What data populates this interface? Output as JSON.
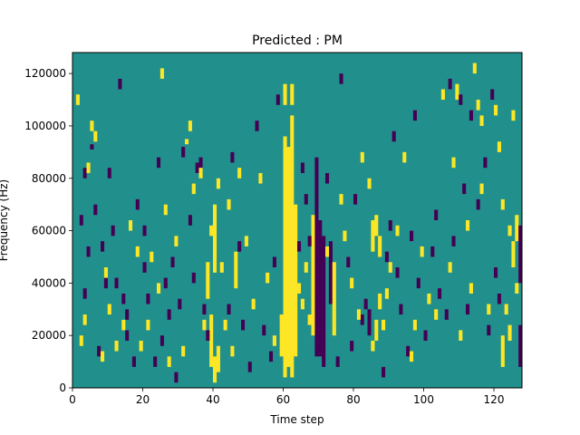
{
  "chart_data": {
    "type": "heatmap",
    "title": "Predicted : PM",
    "xlabel": "Time step",
    "ylabel": "Frequency (Hz)",
    "xlim": [
      0,
      128
    ],
    "ylim": [
      0,
      128000
    ],
    "x_ticks": [
      0,
      20,
      40,
      60,
      80,
      100,
      120
    ],
    "y_ticks": [
      0,
      20000,
      40000,
      60000,
      80000,
      100000,
      120000
    ],
    "grid": false,
    "legend": "none",
    "colormap": "viridis",
    "cell_values": [
      -1,
      0,
      1
    ],
    "colors": {
      "-1": "#440154",
      "0": "#21908d",
      "1": "#fde725"
    },
    "background_value": 0,
    "note_unused": "",
    "pulses": [
      {
        "x": 5,
        "y_min": 98000,
        "y_max": 102000,
        "value": 1
      },
      {
        "x": 32,
        "y_min": 93000,
        "y_max": 95000,
        "value": 1
      },
      {
        "x": 5,
        "y_min": 91000,
        "y_max": 93000,
        "value": -1
      },
      {
        "x": 59,
        "y_min": 12000,
        "y_max": 28000,
        "value": 1
      },
      {
        "x": 60,
        "y_min": 4000,
        "y_max": 96000,
        "value": 1
      },
      {
        "x": 61,
        "y_min": 8000,
        "y_max": 92000,
        "value": 1
      },
      {
        "x": 62,
        "y_min": 4000,
        "y_max": 104000,
        "value": 1
      },
      {
        "x": 63,
        "y_min": 12000,
        "y_max": 70000,
        "value": 1
      },
      {
        "x": 60,
        "y_min": 108000,
        "y_max": 116000,
        "value": 1
      },
      {
        "x": 62,
        "y_min": 108000,
        "y_max": 116000,
        "value": 1
      },
      {
        "x": 68,
        "y_min": 20000,
        "y_max": 66000,
        "value": 1
      },
      {
        "x": 69,
        "y_min": 12000,
        "y_max": 88000,
        "value": -1
      },
      {
        "x": 70,
        "y_min": 12000,
        "y_max": 64000,
        "value": -1
      },
      {
        "x": 71,
        "y_min": 8000,
        "y_max": 58000,
        "value": -1
      },
      {
        "x": 73,
        "y_min": 32000,
        "y_max": 56000,
        "value": -1
      },
      {
        "x": 74,
        "y_min": 20000,
        "y_max": 48000,
        "value": 1
      },
      {
        "x": 38,
        "y_min": 34000,
        "y_max": 48000,
        "value": 1
      },
      {
        "x": 39,
        "y_min": 8000,
        "y_max": 28000,
        "value": 1
      },
      {
        "x": 41,
        "y_min": 6000,
        "y_max": 16000,
        "value": 1
      },
      {
        "x": 40,
        "y_min": 44000,
        "y_max": 70000,
        "value": 1
      },
      {
        "x": 46,
        "y_min": 38000,
        "y_max": 52000,
        "value": 1
      },
      {
        "x": 84,
        "y_min": 20000,
        "y_max": 30000,
        "value": -1
      },
      {
        "x": 85,
        "y_min": 52000,
        "y_max": 64000,
        "value": 1
      },
      {
        "x": 86,
        "y_min": 58000,
        "y_max": 66000,
        "value": 1
      },
      {
        "x": 87,
        "y_min": 50000,
        "y_max": 58000,
        "value": 1
      },
      {
        "x": 87,
        "y_min": 30000,
        "y_max": 36000,
        "value": 1
      },
      {
        "x": 86,
        "y_min": 18000,
        "y_max": 26000,
        "value": 1
      },
      {
        "x": 122,
        "y_min": 8000,
        "y_max": 20000,
        "value": 1
      },
      {
        "x": 124,
        "y_min": 18000,
        "y_max": 24000,
        "value": 1
      },
      {
        "x": 123,
        "y_min": 28000,
        "y_max": 32000,
        "value": 1
      },
      {
        "x": 125,
        "y_min": 46000,
        "y_max": 56000,
        "value": 1
      },
      {
        "x": 126,
        "y_min": 56000,
        "y_max": 66000,
        "value": 1
      },
      {
        "x": 127,
        "y_min": 8000,
        "y_max": 24000,
        "value": -1
      },
      {
        "x": 127,
        "y_min": 40000,
        "y_max": 62000,
        "value": -1
      },
      {
        "x": 116,
        "y_min": 100000,
        "y_max": 104000,
        "value": 1
      },
      {
        "x": 109,
        "y_min": 110000,
        "y_max": 116000,
        "value": 1
      },
      {
        "x": 40,
        "y_min": 2000,
        "y_max": 12000,
        "value": 1
      },
      {
        "x": 43,
        "y_min": 22000,
        "y_max": 26000,
        "value": 1
      }
    ],
    "speckles_minus": [
      [
        2,
        64000
      ],
      [
        3,
        36000
      ],
      [
        3,
        82000
      ],
      [
        4,
        52000
      ],
      [
        6,
        68000
      ],
      [
        7,
        14000
      ],
      [
        8,
        54000
      ],
      [
        9,
        40000
      ],
      [
        10,
        82000
      ],
      [
        11,
        60000
      ],
      [
        12,
        40000
      ],
      [
        13,
        116000
      ],
      [
        14,
        34000
      ],
      [
        15,
        28000
      ],
      [
        15,
        20000
      ],
      [
        17,
        10000
      ],
      [
        18,
        70000
      ],
      [
        20,
        60000
      ],
      [
        20,
        46000
      ],
      [
        21,
        34000
      ],
      [
        23,
        10000
      ],
      [
        24,
        86000
      ],
      [
        25,
        18000
      ],
      [
        26,
        40000
      ],
      [
        27,
        28000
      ],
      [
        28,
        48000
      ],
      [
        29,
        4000
      ],
      [
        30,
        32000
      ],
      [
        31,
        90000
      ],
      [
        33,
        64000
      ],
      [
        34,
        42000
      ],
      [
        35,
        84000
      ],
      [
        36,
        86000
      ],
      [
        37,
        30000
      ],
      [
        38,
        20000
      ],
      [
        44,
        30000
      ],
      [
        45,
        88000
      ],
      [
        47,
        54000
      ],
      [
        48,
        24000
      ],
      [
        50,
        8000
      ],
      [
        52,
        100000
      ],
      [
        54,
        22000
      ],
      [
        56,
        12000
      ],
      [
        57,
        48000
      ],
      [
        58,
        110000
      ],
      [
        64,
        54000
      ],
      [
        65,
        84000
      ],
      [
        66,
        72000
      ],
      [
        67,
        56000
      ],
      [
        72,
        80000
      ],
      [
        75,
        10000
      ],
      [
        76,
        118000
      ],
      [
        78,
        48000
      ],
      [
        79,
        16000
      ],
      [
        80,
        72000
      ],
      [
        82,
        26000
      ],
      [
        83,
        32000
      ],
      [
        88,
        6000
      ],
      [
        89,
        50000
      ],
      [
        90,
        62000
      ],
      [
        91,
        96000
      ],
      [
        92,
        44000
      ],
      [
        93,
        30000
      ],
      [
        95,
        14000
      ],
      [
        96,
        58000
      ],
      [
        97,
        104000
      ],
      [
        98,
        40000
      ],
      [
        100,
        20000
      ],
      [
        102,
        52000
      ],
      [
        103,
        66000
      ],
      [
        104,
        36000
      ],
      [
        106,
        28000
      ],
      [
        107,
        116000
      ],
      [
        108,
        56000
      ],
      [
        110,
        110000
      ],
      [
        111,
        76000
      ],
      [
        112,
        30000
      ],
      [
        113,
        104000
      ],
      [
        115,
        70000
      ],
      [
        117,
        86000
      ],
      [
        118,
        22000
      ],
      [
        119,
        112000
      ],
      [
        120,
        44000
      ],
      [
        121,
        34000
      ]
    ],
    "speckles_plus": [
      [
        1,
        110000
      ],
      [
        2,
        18000
      ],
      [
        3,
        26000
      ],
      [
        4,
        84000
      ],
      [
        6,
        96000
      ],
      [
        8,
        12000
      ],
      [
        9,
        44000
      ],
      [
        10,
        30000
      ],
      [
        12,
        16000
      ],
      [
        14,
        24000
      ],
      [
        16,
        62000
      ],
      [
        18,
        52000
      ],
      [
        19,
        16000
      ],
      [
        21,
        24000
      ],
      [
        22,
        50000
      ],
      [
        24,
        38000
      ],
      [
        25,
        120000
      ],
      [
        26,
        68000
      ],
      [
        27,
        10000
      ],
      [
        29,
        56000
      ],
      [
        31,
        14000
      ],
      [
        33,
        100000
      ],
      [
        34,
        76000
      ],
      [
        36,
        82000
      ],
      [
        37,
        24000
      ],
      [
        39,
        60000
      ],
      [
        41,
        78000
      ],
      [
        42,
        46000
      ],
      [
        44,
        70000
      ],
      [
        45,
        14000
      ],
      [
        47,
        82000
      ],
      [
        49,
        56000
      ],
      [
        51,
        32000
      ],
      [
        53,
        80000
      ],
      [
        55,
        42000
      ],
      [
        57,
        18000
      ],
      [
        64,
        38000
      ],
      [
        65,
        32000
      ],
      [
        66,
        46000
      ],
      [
        67,
        26000
      ],
      [
        72,
        52000
      ],
      [
        76,
        72000
      ],
      [
        77,
        58000
      ],
      [
        79,
        40000
      ],
      [
        81,
        28000
      ],
      [
        82,
        88000
      ],
      [
        84,
        78000
      ],
      [
        85,
        16000
      ],
      [
        88,
        24000
      ],
      [
        89,
        36000
      ],
      [
        90,
        46000
      ],
      [
        92,
        60000
      ],
      [
        94,
        88000
      ],
      [
        96,
        12000
      ],
      [
        97,
        24000
      ],
      [
        99,
        52000
      ],
      [
        101,
        34000
      ],
      [
        103,
        28000
      ],
      [
        105,
        112000
      ],
      [
        107,
        46000
      ],
      [
        108,
        86000
      ],
      [
        110,
        20000
      ],
      [
        112,
        62000
      ],
      [
        113,
        38000
      ],
      [
        114,
        122000
      ],
      [
        115,
        108000
      ],
      [
        116,
        76000
      ],
      [
        118,
        30000
      ],
      [
        120,
        106000
      ],
      [
        121,
        92000
      ],
      [
        122,
        70000
      ],
      [
        124,
        60000
      ],
      [
        125,
        104000
      ],
      [
        126,
        38000
      ]
    ]
  }
}
